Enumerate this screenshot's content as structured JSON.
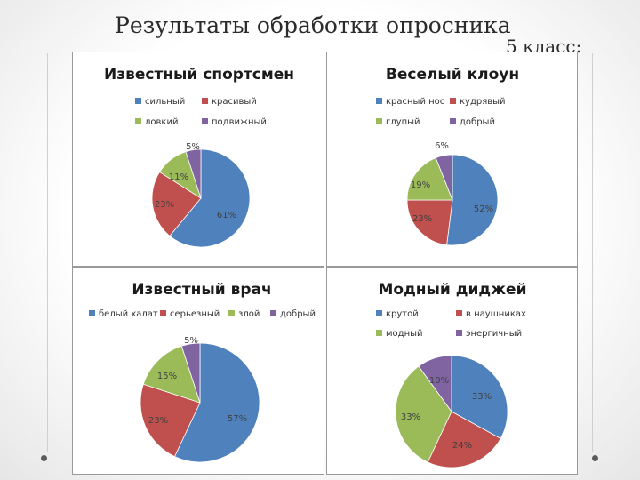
{
  "title": "Результаты обработки опросника",
  "subtitle": "5 класс:",
  "colors": {
    "blue": "#4f81bd",
    "red": "#c0504d",
    "green": "#9bbb59",
    "purple": "#8064a2"
  },
  "chart_data": [
    {
      "type": "pie",
      "title": "Известный спортсмен",
      "categories": [
        "сильный",
        "красивый",
        "ловкий",
        "подвижный"
      ],
      "values": [
        61,
        23,
        11,
        5
      ],
      "labels": [
        "61%",
        "23%",
        "11%",
        "5%"
      ],
      "colors": [
        "#4f81bd",
        "#c0504d",
        "#9bbb59",
        "#8064a2"
      ],
      "legend": "top"
    },
    {
      "type": "pie",
      "title": "Веселый клоун",
      "categories": [
        "красный нос",
        "кудрявый",
        "глупый",
        "добрый"
      ],
      "values": [
        52,
        23,
        19,
        6
      ],
      "labels": [
        "52%",
        "23%",
        "19%",
        "6%"
      ],
      "colors": [
        "#4f81bd",
        "#c0504d",
        "#9bbb59",
        "#8064a2"
      ],
      "legend": "top"
    },
    {
      "type": "pie",
      "title": "Известный врач",
      "categories": [
        "белый халат",
        "серьезный",
        "злой",
        "добрый"
      ],
      "values": [
        57,
        23,
        15,
        5
      ],
      "labels": [
        "57%",
        "23%",
        "15%",
        "5%"
      ],
      "colors": [
        "#4f81bd",
        "#c0504d",
        "#9bbb59",
        "#8064a2"
      ],
      "legend": "top"
    },
    {
      "type": "pie",
      "title": "Модный диджей",
      "categories": [
        "крутой",
        "в наушниках",
        "модный",
        "энергичный"
      ],
      "values": [
        33,
        24,
        33,
        10
      ],
      "labels": [
        "33%",
        "24%",
        "33%",
        "10%"
      ],
      "colors": [
        "#4f81bd",
        "#c0504d",
        "#9bbb59",
        "#8064a2"
      ],
      "legend": "top"
    }
  ]
}
